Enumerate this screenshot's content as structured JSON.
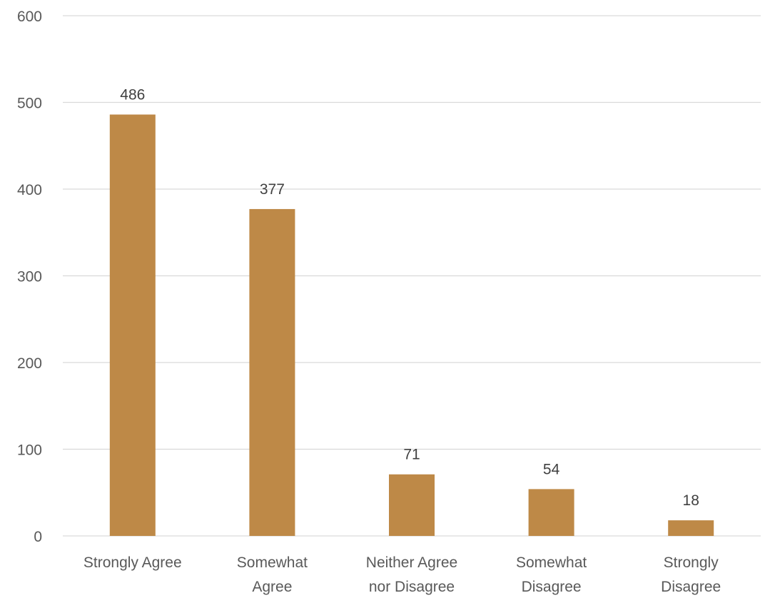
{
  "chart_data": {
    "type": "bar",
    "title": "",
    "xlabel": "",
    "ylabel": "",
    "categories": [
      [
        "Strongly Agree"
      ],
      [
        "Somewhat",
        "Agree"
      ],
      [
        "Neither Agree",
        "nor Disagree"
      ],
      [
        "Somewhat",
        "Disagree"
      ],
      [
        "Strongly",
        "Disagree"
      ]
    ],
    "values": [
      486,
      377,
      71,
      54,
      18
    ],
    "ylim": [
      0,
      600
    ],
    "yticks": [
      0,
      100,
      200,
      300,
      400,
      500,
      600
    ],
    "grid": true,
    "legend": "none",
    "data_labels": true,
    "colors": {
      "bar": "#BE8947",
      "grid": "#D9D9D9",
      "axis_text": "#595959",
      "data_label": "#404040"
    }
  }
}
